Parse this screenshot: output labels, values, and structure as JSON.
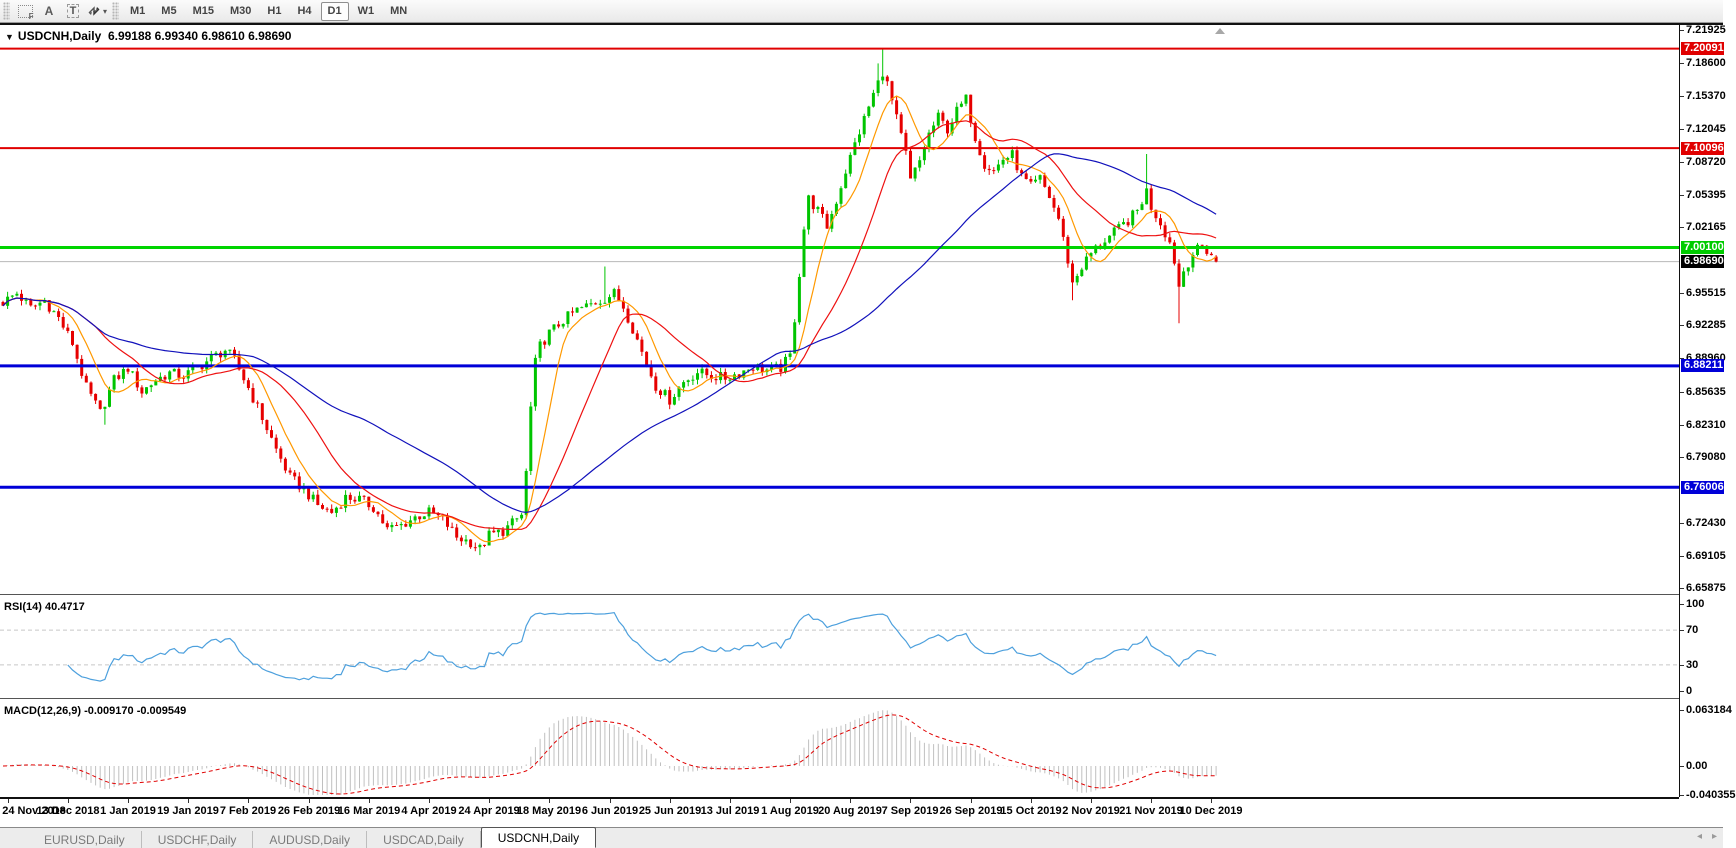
{
  "icons": {
    "title_marker": "▼",
    "dropdown_caret": "▾",
    "tab_scroll_left": "◂",
    "tab_scroll_right": "▸",
    "tool_frame": "F",
    "tool_arrow": "A",
    "tool_text": "T"
  },
  "toolbar": {
    "timeframes": [
      "M1",
      "M5",
      "M15",
      "M30",
      "H1",
      "H4",
      "D1",
      "W1",
      "MN"
    ],
    "active_timeframe": "D1"
  },
  "chart": {
    "title_symbol": "USDCNH,Daily",
    "title_ohlc": "6.99188 6.99340 6.98610 6.98690",
    "price_ticks": [
      "7.21925",
      "7.18600",
      "7.15370",
      "7.12045",
      "7.08720",
      "7.05395",
      "7.02165",
      "6.95515",
      "6.92285",
      "6.88960",
      "6.85635",
      "6.82310",
      "6.79080",
      "6.72430",
      "6.69105",
      "6.65875"
    ],
    "levels": [
      {
        "value": 7.20091,
        "label": "7.20091",
        "color": "#e00000",
        "line_width": 2
      },
      {
        "value": 7.10096,
        "label": "7.10096",
        "color": "#e00000",
        "line_width": 2
      },
      {
        "value": 7.001,
        "label": "7.00100",
        "color": "#00cc00",
        "line_color": "#00d400",
        "line_width": 3
      },
      {
        "value": 6.88211,
        "label": "6.88211",
        "color": "#0000d8",
        "line_width": 3
      },
      {
        "value": 6.76006,
        "label": "6.76006",
        "color": "#0000d8",
        "line_width": 3
      }
    ],
    "current_price_box": {
      "value": 6.9869,
      "label": "6.98690",
      "color": "#000000",
      "line_color": "#b8b8b8"
    }
  },
  "rsi": {
    "label": "RSI(14)",
    "value": "40.4717",
    "ticks": [
      {
        "v": 100,
        "label": "100"
      },
      {
        "v": 70,
        "label": "70"
      },
      {
        "v": 30,
        "label": "30"
      },
      {
        "v": 0,
        "label": "0"
      }
    ]
  },
  "macd": {
    "label": "MACD(12,26,9)",
    "values": "-0.009170 -0.009549",
    "ticks": [
      {
        "v": 0.063184,
        "label": "0.063184"
      },
      {
        "v": 0,
        "label": "0.00"
      },
      {
        "v": -0.040355,
        "label": "-0.040355"
      }
    ]
  },
  "dates": [
    {
      "bar": 1,
      "label": "24 Nov 2018"
    },
    {
      "bar": 14,
      "label": "13 Dec 2018"
    },
    {
      "bar": 27,
      "label": "1 Jan 2019"
    },
    {
      "bar": 40,
      "label": "19 Jan 2019"
    },
    {
      "bar": 53,
      "label": "7 Feb 2019"
    },
    {
      "bar": 66,
      "label": "26 Feb 2019"
    },
    {
      "bar": 79,
      "label": "16 Mar 2019"
    },
    {
      "bar": 92,
      "label": "4 Apr 2019"
    },
    {
      "bar": 105,
      "label": "24 Apr 2019"
    },
    {
      "bar": 118,
      "label": "18 May 2019"
    },
    {
      "bar": 131,
      "label": "6 Jun 2019"
    },
    {
      "bar": 144,
      "label": "25 Jun 2019"
    },
    {
      "bar": 157,
      "label": "13 Jul 2019"
    },
    {
      "bar": 170,
      "label": "1 Aug 2019"
    },
    {
      "bar": 183,
      "label": "20 Aug 2019"
    },
    {
      "bar": 196,
      "label": "7 Sep 2019"
    },
    {
      "bar": 209,
      "label": "26 Sep 2019"
    },
    {
      "bar": 222,
      "label": "15 Oct 2019"
    },
    {
      "bar": 235,
      "label": "2 Nov 2019"
    },
    {
      "bar": 248,
      "label": "21 Nov 2019"
    },
    {
      "bar": 261,
      "label": "10 Dec 2019"
    }
  ],
  "tabs": {
    "items": [
      "EURUSD,Daily",
      "USDCHF,Daily",
      "AUDUSD,Daily",
      "USDCAD,Daily",
      "USDCNH,Daily"
    ],
    "active": "USDCNH,Daily"
  },
  "chart_data": {
    "type": "candlestick",
    "symbol": "USDCNH",
    "timeframe": "Daily",
    "bars": 263,
    "y_axis": {
      "top": 7.2246,
      "bottom": 6.6529
    },
    "ohlc_last": {
      "open": 6.99188,
      "high": 6.9934,
      "low": 6.9861,
      "close": 6.9869
    },
    "current_price": 6.9869,
    "bull_color": "#00c400",
    "bear_color": "#e60000",
    "h_lines": [
      7.20091,
      7.10096,
      7.001,
      6.88211,
      6.76006
    ],
    "price_path": [
      [
        0,
        6.946
      ],
      [
        3,
        6.955
      ],
      [
        6,
        6.94
      ],
      [
        9,
        6.948
      ],
      [
        12,
        6.93
      ],
      [
        15,
        6.905
      ],
      [
        18,
        6.86
      ],
      [
        21,
        6.835
      ],
      [
        24,
        6.868
      ],
      [
        27,
        6.88
      ],
      [
        30,
        6.856
      ],
      [
        33,
        6.868
      ],
      [
        36,
        6.875
      ],
      [
        39,
        6.872
      ],
      [
        42,
        6.88
      ],
      [
        45,
        6.89
      ],
      [
        48,
        6.898
      ],
      [
        50,
        6.888
      ],
      [
        53,
        6.86
      ],
      [
        56,
        6.83
      ],
      [
        59,
        6.798
      ],
      [
        62,
        6.77
      ],
      [
        65,
        6.758
      ],
      [
        68,
        6.742
      ],
      [
        71,
        6.735
      ],
      [
        74,
        6.75
      ],
      [
        77,
        6.748
      ],
      [
        80,
        6.74
      ],
      [
        83,
        6.718
      ],
      [
        86,
        6.722
      ],
      [
        89,
        6.73
      ],
      [
        92,
        6.735
      ],
      [
        95,
        6.728
      ],
      [
        98,
        6.71
      ],
      [
        101,
        6.705
      ],
      [
        103,
        6.698
      ],
      [
        105,
        6.712
      ],
      [
        108,
        6.716
      ],
      [
        112,
        6.732
      ],
      [
        113,
        6.775
      ],
      [
        114,
        6.84
      ],
      [
        115,
        6.885
      ],
      [
        116,
        6.902
      ],
      [
        118,
        6.915
      ],
      [
        121,
        6.928
      ],
      [
        124,
        6.938
      ],
      [
        127,
        6.944
      ],
      [
        130,
        6.95
      ],
      [
        132,
        6.955
      ],
      [
        134,
        6.942
      ],
      [
        136,
        6.92
      ],
      [
        138,
        6.896
      ],
      [
        141,
        6.862
      ],
      [
        144,
        6.848
      ],
      [
        147,
        6.866
      ],
      [
        150,
        6.876
      ],
      [
        153,
        6.872
      ],
      [
        156,
        6.87
      ],
      [
        159,
        6.875
      ],
      [
        162,
        6.882
      ],
      [
        165,
        6.878
      ],
      [
        168,
        6.88
      ],
      [
        170,
        6.892
      ],
      [
        171,
        6.93
      ],
      [
        172,
        6.975
      ],
      [
        173,
        7.02
      ],
      [
        174,
        7.05
      ],
      [
        176,
        7.038
      ],
      [
        178,
        7.022
      ],
      [
        180,
        7.048
      ],
      [
        182,
        7.078
      ],
      [
        184,
        7.105
      ],
      [
        186,
        7.13
      ],
      [
        188,
        7.155
      ],
      [
        190,
        7.178
      ],
      [
        191,
        7.165
      ],
      [
        193,
        7.13
      ],
      [
        195,
        7.095
      ],
      [
        196,
        7.068
      ],
      [
        198,
        7.088
      ],
      [
        200,
        7.115
      ],
      [
        202,
        7.132
      ],
      [
        204,
        7.12
      ],
      [
        206,
        7.138
      ],
      [
        208,
        7.15
      ],
      [
        210,
        7.112
      ],
      [
        212,
        7.085
      ],
      [
        214,
        7.078
      ],
      [
        216,
        7.09
      ],
      [
        218,
        7.094
      ],
      [
        220,
        7.072
      ],
      [
        222,
        7.062
      ],
      [
        224,
        7.07
      ],
      [
        226,
        7.052
      ],
      [
        228,
        7.03
      ],
      [
        230,
        6.988
      ],
      [
        231,
        6.965
      ],
      [
        233,
        6.982
      ],
      [
        235,
        6.995
      ],
      [
        237,
        7.005
      ],
      [
        239,
        7.012
      ],
      [
        241,
        7.02
      ],
      [
        243,
        7.028
      ],
      [
        245,
        7.038
      ],
      [
        247,
        7.058
      ],
      [
        248,
        7.042
      ],
      [
        250,
        7.026
      ],
      [
        252,
        7.006
      ],
      [
        253,
        6.988
      ],
      [
        254,
        6.962
      ],
      [
        255,
        6.978
      ],
      [
        257,
        6.995
      ],
      [
        259,
        7.002
      ],
      [
        261,
        6.994
      ],
      [
        262,
        6.987
      ]
    ],
    "spikes": [
      {
        "bar": 190,
        "high": 7.2009
      },
      {
        "bar": 189,
        "high": 7.186
      },
      {
        "bar": 247,
        "high": 7.095
      },
      {
        "bar": 254,
        "low": 6.925
      },
      {
        "bar": 231,
        "low": 6.948
      },
      {
        "bar": 22,
        "low": 6.823
      },
      {
        "bar": 103,
        "low": 6.692
      },
      {
        "bar": 130,
        "high": 6.982
      }
    ],
    "moving_averages": [
      {
        "period": 8,
        "color": "#ff9900"
      },
      {
        "period": 21,
        "color": "#ee1111"
      },
      {
        "period": 55,
        "color": "#1111bb"
      }
    ],
    "rsi": {
      "period": 14,
      "current": 40.4717,
      "range": [
        0,
        100
      ],
      "levels": [
        30,
        70
      ],
      "color": "#4da0dd"
    },
    "macd": {
      "fast": 12,
      "slow": 26,
      "signal_period": 9,
      "current_macd": -0.00917,
      "current_signal": -0.009549,
      "scale_max": 0.063184,
      "scale_min": -0.040355,
      "histogram_color": "#c0c0c0",
      "signal_color": "#e00000"
    }
  }
}
